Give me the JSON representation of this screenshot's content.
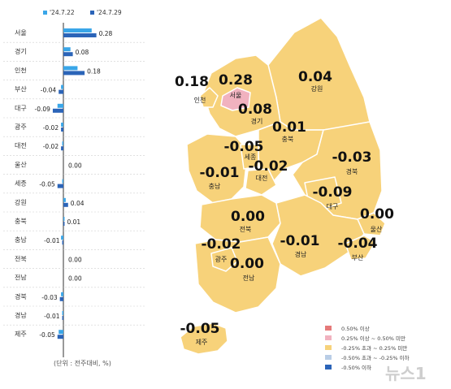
{
  "chart_data": [
    {
      "type": "bar",
      "orientation": "horizontal",
      "categories": [
        "서울",
        "경기",
        "인천",
        "부산",
        "대구",
        "광주",
        "대전",
        "울산",
        "세종",
        "강원",
        "충북",
        "충남",
        "전북",
        "전남",
        "경북",
        "경남",
        "제주"
      ],
      "series": [
        {
          "name": "'24.7.22",
          "color": "#3aa6e8",
          "values": [
            0.24,
            0.06,
            0.12,
            -0.02,
            -0.05,
            -0.02,
            -0.01,
            0.0,
            -0.01,
            0.02,
            0.01,
            -0.02,
            0.0,
            0.0,
            -0.02,
            -0.01,
            -0.04
          ]
        },
        {
          "name": "'24.7.29",
          "color": "#2b64b8",
          "values": [
            0.28,
            0.08,
            0.18,
            -0.04,
            -0.09,
            -0.02,
            -0.02,
            0.0,
            -0.05,
            0.04,
            0.01,
            -0.01,
            0.0,
            0.0,
            -0.03,
            -0.01,
            -0.05
          ]
        }
      ],
      "value_labels": [
        "0.28",
        "0.08",
        "0.18",
        "-0.04",
        "-0.09",
        "-0.02",
        "-0.02",
        "0.00",
        "-0.05",
        "0.04",
        "0.01",
        "-0.01",
        "0.00",
        "0.00",
        "-0.03",
        "-0.01",
        "-0.05"
      ],
      "legend": {
        "items": [
          "'24.7.22",
          "'24.7.29"
        ],
        "placement": "top"
      },
      "xlim": [
        -0.1,
        0.3
      ],
      "grid": false
    },
    {
      "type": "map",
      "regions": [
        {
          "id": "seoul",
          "name": "서울",
          "value": "0.28",
          "fill": "#f1b2bf"
        },
        {
          "id": "incheon",
          "name": "인천",
          "value": "0.18",
          "fill": "#f7d27a"
        },
        {
          "id": "gyeonggi",
          "name": "경기",
          "value": "0.08",
          "fill": "#f7d27a"
        },
        {
          "id": "gangwon",
          "name": "강원",
          "value": "0.04",
          "fill": "#f7d27a"
        },
        {
          "id": "chungbuk",
          "name": "충북",
          "value": "0.01",
          "fill": "#f7d27a"
        },
        {
          "id": "sejong",
          "name": "세종",
          "value": "-0.05",
          "fill": "#f7d27a"
        },
        {
          "id": "daejeon",
          "name": "대전",
          "value": "-0.02",
          "fill": "#f7d27a"
        },
        {
          "id": "chungnam",
          "name": "충남",
          "value": "-0.01",
          "fill": "#f7d27a"
        },
        {
          "id": "gyeongbuk",
          "name": "경북",
          "value": "-0.03",
          "fill": "#f7d27a"
        },
        {
          "id": "daegu",
          "name": "대구",
          "value": "-0.09",
          "fill": "#f7d27a"
        },
        {
          "id": "jeonbuk",
          "name": "전북",
          "value": "0.00",
          "fill": "#f7d27a"
        },
        {
          "id": "ulsan",
          "name": "울산",
          "value": "0.00",
          "fill": "#f7d27a"
        },
        {
          "id": "gwangju",
          "name": "광주",
          "value": "-0.02",
          "fill": "#f7d27a"
        },
        {
          "id": "jeonnam",
          "name": "전남",
          "value": "0.00",
          "fill": "#f7d27a"
        },
        {
          "id": "gyeongnam",
          "name": "경남",
          "value": "-0.01",
          "fill": "#f7d27a"
        },
        {
          "id": "busan",
          "name": "부산",
          "value": "-0.04",
          "fill": "#f7d27a"
        },
        {
          "id": "jeju",
          "name": "제주",
          "value": "-0.05",
          "fill": "#f7d27a"
        }
      ],
      "legend": [
        {
          "label": "0.50% 이상",
          "color": "#e57a7a"
        },
        {
          "label": "0.25% 이상 ~ 0.50% 미만",
          "color": "#f1b2bf"
        },
        {
          "label": "-0.25% 초과 ~ 0.25% 미만",
          "color": "#f7d27a"
        },
        {
          "label": "-0.50% 초과 ~ -0.25% 이하",
          "color": "#b9cde6"
        },
        {
          "label": "-0.50% 이하",
          "color": "#2b64b8"
        }
      ]
    }
  ],
  "unit_note": "(단위 : 전주대비, %)",
  "watermark": "뉴스1"
}
